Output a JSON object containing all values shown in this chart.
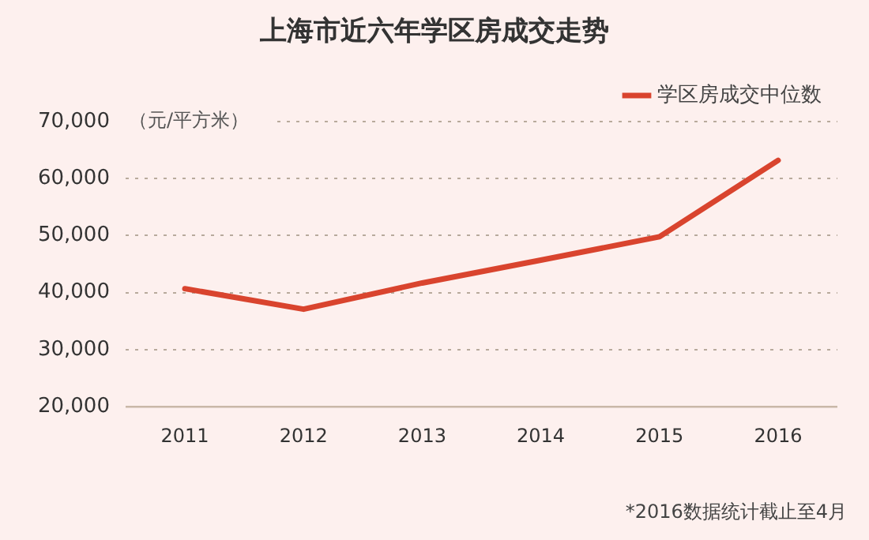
{
  "chart_data": {
    "type": "line",
    "title": "上海市近六年学区房成交走势",
    "ylabel": "（元/平方米）",
    "categories": [
      "2011",
      "2012",
      "2013",
      "2014",
      "2015",
      "2016"
    ],
    "series": [
      {
        "name": "学区房成交中位数",
        "color": "#d9442e",
        "values": [
          40700,
          37100,
          41700,
          45700,
          49800,
          63200
        ]
      }
    ],
    "ylim": [
      20000,
      70000
    ],
    "yticks": [
      {
        "value": 20000,
        "label": "20,000"
      },
      {
        "value": 30000,
        "label": "30,000"
      },
      {
        "value": 40000,
        "label": "40,000"
      },
      {
        "value": 50000,
        "label": "50,000"
      },
      {
        "value": 60000,
        "label": "60,000"
      },
      {
        "value": 70000,
        "label": "70,000"
      }
    ],
    "grid": "y",
    "legend": "top right",
    "marker": "none",
    "line_style": "solid",
    "annotations": [
      "*2016数据统计截止至4月"
    ]
  }
}
